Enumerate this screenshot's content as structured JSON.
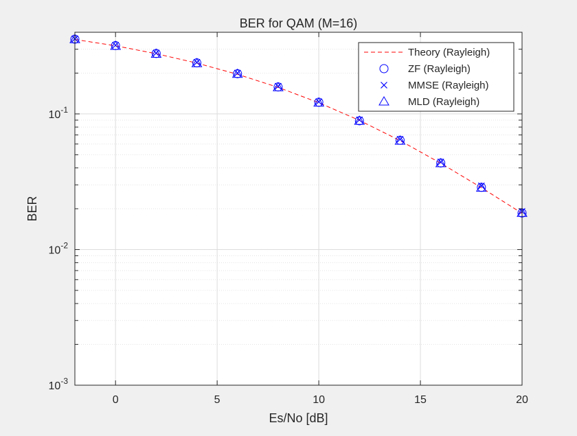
{
  "chart_data": {
    "type": "line",
    "title": "BER for QAM (M=16)",
    "xlabel": "Es/No [dB]",
    "ylabel": "BER",
    "xlim": [
      -2,
      20
    ],
    "ylim": [
      0.001,
      0.4
    ],
    "yscale": "log",
    "grid": true,
    "minor_grid": true,
    "legend_position": "top-right",
    "x_ticks": [
      0,
      5,
      10,
      15,
      20
    ],
    "x_tick_labels": [
      "0",
      "5",
      "10",
      "15",
      "20"
    ],
    "y_ticks": [
      0.1,
      0.01,
      0.001
    ],
    "y_tick_labels": [
      {
        "base": "10",
        "exp": "-1"
      },
      {
        "base": "10",
        "exp": "-2"
      },
      {
        "base": "10",
        "exp": "-3"
      }
    ],
    "x": [
      -2,
      0,
      2,
      4,
      6,
      8,
      10,
      12,
      14,
      16,
      18,
      20
    ],
    "series": [
      {
        "name": "Theory (Rayleigh)",
        "style": "dashed-line",
        "color": "#ff0000",
        "values": [
          0.354,
          0.318,
          0.278,
          0.237,
          0.196,
          0.157,
          0.121,
          0.0896,
          0.0636,
          0.0433,
          0.0286,
          0.0185
        ]
      },
      {
        "name": "ZF (Rayleigh)",
        "style": "circle-marker",
        "color": "#0000ff",
        "values": [
          0.356,
          0.319,
          0.279,
          0.238,
          0.198,
          0.158,
          0.122,
          0.089,
          0.064,
          0.0435,
          0.0288,
          0.0186
        ]
      },
      {
        "name": "MMSE (Rayleigh)",
        "style": "x-marker",
        "color": "#0000ff",
        "values": [
          0.358,
          0.321,
          0.281,
          0.24,
          0.2,
          0.16,
          0.123,
          0.0905,
          0.065,
          0.0442,
          0.0295,
          0.0191
        ]
      },
      {
        "name": "MLD (Rayleigh)",
        "style": "triangle-marker",
        "color": "#0000ff",
        "values": [
          0.355,
          0.317,
          0.277,
          0.236,
          0.197,
          0.157,
          0.121,
          0.0888,
          0.0633,
          0.0432,
          0.0285,
          0.0186
        ]
      }
    ]
  }
}
